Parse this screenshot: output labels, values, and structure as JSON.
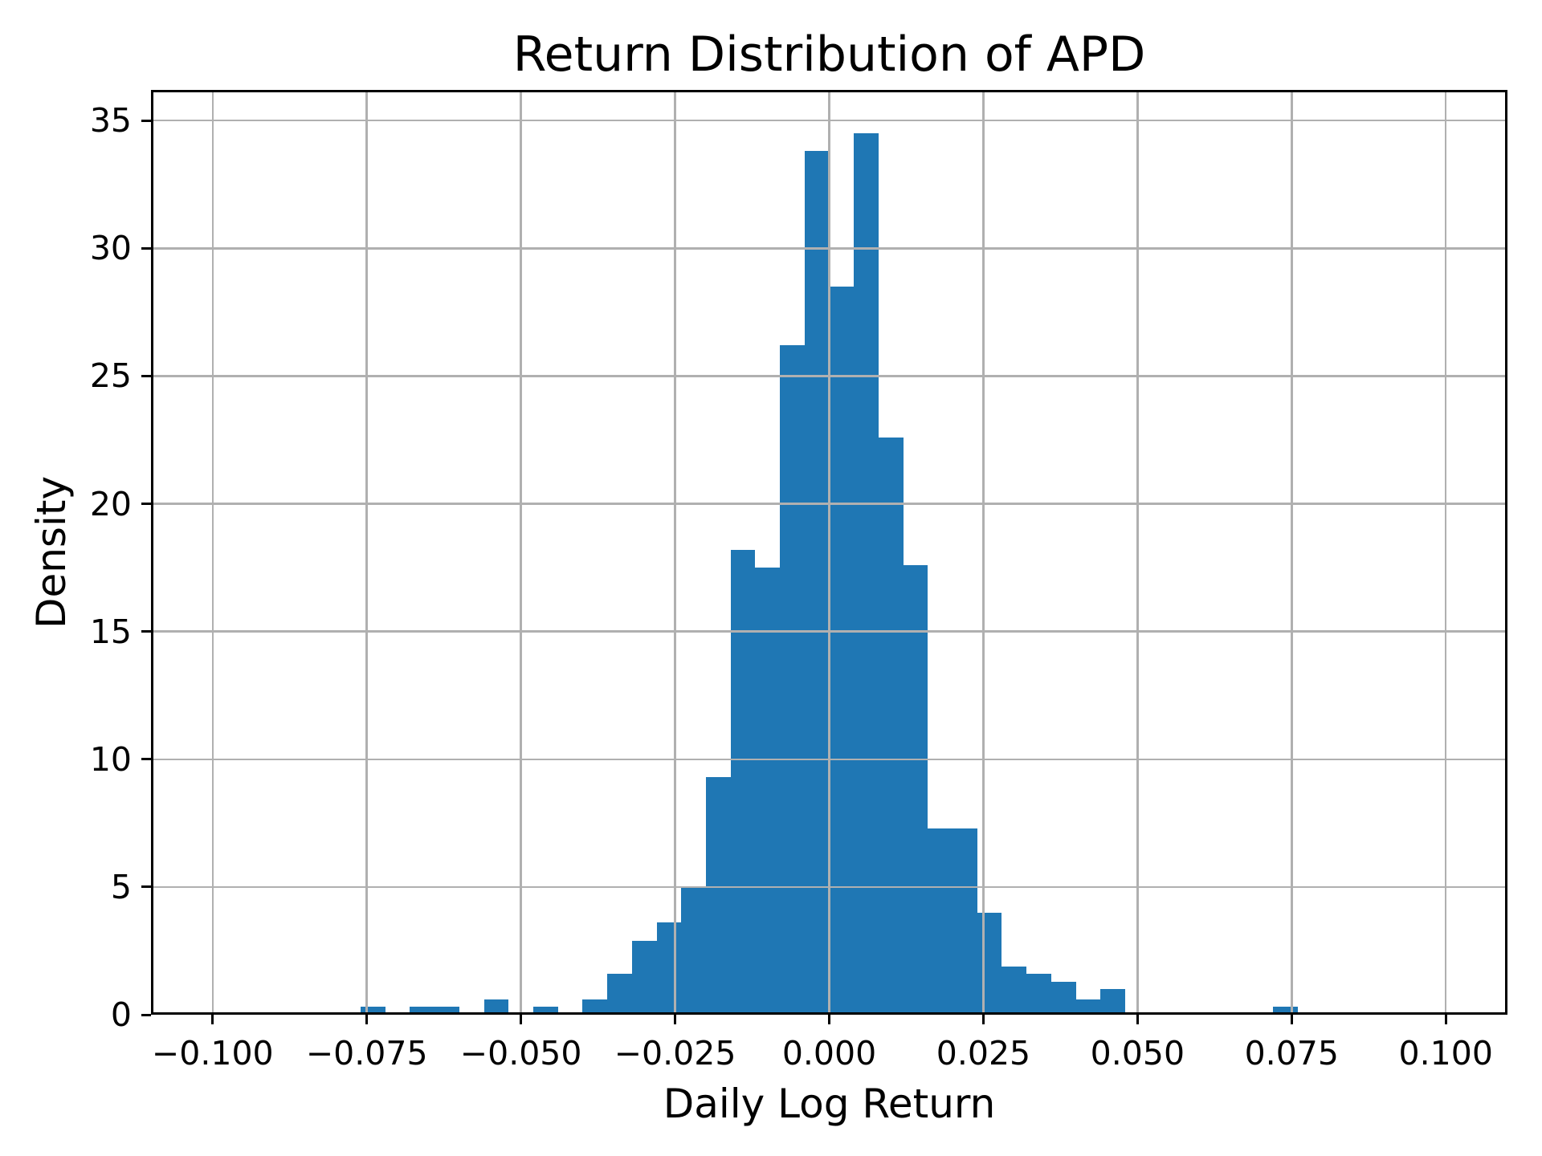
{
  "chart_data": {
    "type": "histogram",
    "title": "Return Distribution of APD",
    "xlabel": "Daily Log Return",
    "ylabel": "Density",
    "bar_color": "#1f77b4",
    "grid_color": "#b0b0b0",
    "spine_color": "#000000",
    "grid_on": true,
    "grid_above_bars": true,
    "xlim": [
      -0.11,
      0.11
    ],
    "ylim": [
      0,
      36.2
    ],
    "bin_start": -0.076,
    "bin_width": 0.004,
    "bin_heights": [
      0.3,
      0,
      0.3,
      0.3,
      0,
      0.6,
      0,
      0.3,
      0,
      0.6,
      1.6,
      2.9,
      3.6,
      5.0,
      9.3,
      18.2,
      17.5,
      26.2,
      33.8,
      28.5,
      34.5,
      22.6,
      17.6,
      7.3,
      7.3,
      4.0,
      1.9,
      1.6,
      1.3,
      0.6,
      1.0,
      0,
      0,
      0,
      0,
      0,
      0,
      0.3
    ],
    "x_ticks": [
      -0.1,
      -0.075,
      -0.05,
      -0.025,
      0.0,
      0.025,
      0.05,
      0.075,
      0.1
    ],
    "x_tick_labels": [
      "−0.100",
      "−0.075",
      "−0.050",
      "−0.025",
      "0.000",
      "0.025",
      "0.050",
      "0.075",
      "0.100"
    ],
    "y_ticks": [
      0,
      5,
      10,
      15,
      20,
      25,
      30,
      35
    ],
    "y_tick_labels": [
      "0",
      "5",
      "10",
      "15",
      "20",
      "25",
      "30",
      "35"
    ]
  }
}
